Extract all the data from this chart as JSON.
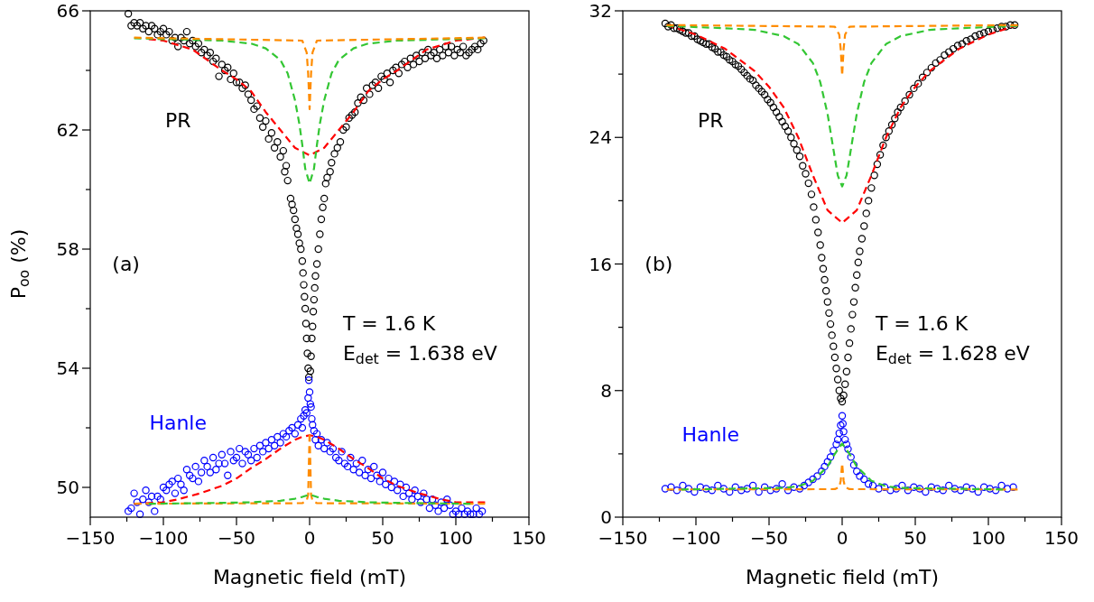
{
  "chart_data": [
    {
      "type": "scatter",
      "xlabel": "Magnetic field (mT)",
      "ylabel": "P$_{oo}$ (%)",
      "line_style": "dashed",
      "xlim": [
        -150,
        150
      ],
      "xticks": [
        {
          "value": -150,
          "label": "−150"
        },
        {
          "value": -125,
          "label": null
        },
        {
          "value": -100,
          "label": "−100"
        },
        {
          "value": -75,
          "label": null
        },
        {
          "value": -50,
          "label": "−50"
        },
        {
          "value": -25,
          "label": null
        },
        0,
        {
          "value": 25,
          "label": null
        },
        50,
        {
          "value": 75,
          "label": null
        },
        100,
        {
          "value": 125,
          "label": null
        },
        150
      ],
      "ylim": [
        49,
        66
      ],
      "yticks": [
        50,
        {
          "value": 52,
          "label": null
        },
        54,
        {
          "value": 56,
          "label": null
        },
        58,
        {
          "value": 60,
          "label": null
        },
        62,
        {
          "value": 64,
          "label": null
        },
        66
      ],
      "annotations": [
        "(a)",
        "T = 1.6 K",
        "E$_{det}$ = 1.638 eV"
      ],
      "series": [
        {
          "name": "PR",
          "marker": "circle",
          "color": "#000000",
          "x": [
            -124,
            -122,
            -120,
            -118,
            -116,
            -114,
            -112,
            -110,
            -108,
            -106,
            -104,
            -102,
            -100,
            -98,
            -96,
            -94,
            -92,
            -90,
            -88,
            -86,
            -84,
            -82,
            -80,
            -78,
            -76,
            -74,
            -72,
            -70,
            -68,
            -66,
            -64,
            -62,
            -60,
            -58,
            -56,
            -54,
            -52,
            -50,
            -48,
            -46,
            -44,
            -42,
            -40,
            -38,
            -36,
            -34,
            -32,
            -30,
            -28,
            -26,
            -24,
            -22,
            -20,
            -18,
            -17,
            -16,
            -15,
            -13,
            -12,
            -11,
            -10,
            -9,
            -8,
            -7,
            -6,
            -5,
            -4.5,
            -4,
            -3.5,
            -3,
            -2.5,
            -2,
            -1.5,
            -1,
            -0.5,
            0.5,
            1,
            1.5,
            2,
            2.5,
            3,
            3.5,
            4,
            5,
            6,
            7,
            8,
            9,
            10,
            11,
            12,
            14,
            15,
            17,
            19,
            21,
            23,
            25,
            27,
            29,
            31,
            33,
            35,
            37,
            39,
            41,
            43,
            45,
            47,
            49,
            51,
            53,
            55,
            57,
            59,
            61,
            63,
            65,
            67,
            69,
            71,
            73,
            75,
            77,
            79,
            81,
            83,
            85,
            87,
            89,
            91,
            93,
            95,
            97,
            99,
            101,
            103,
            105,
            107,
            109,
            111,
            113,
            115,
            117,
            119
          ],
          "values": [
            65.9,
            65.5,
            65.6,
            65.5,
            65.6,
            65.4,
            65.5,
            65.3,
            65.5,
            65.4,
            65.2,
            65.3,
            65.4,
            65.2,
            65.3,
            65.0,
            65.1,
            64.8,
            65.1,
            65.0,
            65.3,
            64.9,
            65.0,
            64.8,
            64.9,
            64.6,
            64.7,
            64.5,
            64.6,
            64.3,
            64.4,
            63.8,
            64.2,
            64.0,
            64.1,
            63.7,
            63.9,
            63.6,
            63.6,
            63.4,
            63.5,
            63.2,
            63.0,
            62.7,
            62.8,
            62.4,
            62.1,
            62.3,
            61.7,
            61.9,
            61.4,
            61.6,
            61.1,
            61.3,
            60.6,
            60.8,
            60.3,
            59.7,
            59.5,
            59.3,
            59.0,
            58.7,
            58.5,
            58.2,
            58.0,
            57.6,
            57.2,
            56.8,
            56.4,
            56.0,
            55.5,
            55.0,
            54.5,
            54.0,
            53.7,
            53.9,
            54.4,
            55.0,
            55.4,
            55.9,
            56.3,
            56.7,
            57.1,
            57.5,
            58.0,
            58.5,
            59.0,
            59.4,
            59.7,
            60.2,
            60.4,
            60.6,
            60.9,
            61.2,
            61.4,
            61.6,
            62.0,
            62.1,
            62.4,
            62.5,
            62.6,
            62.9,
            63.1,
            63.0,
            63.4,
            63.2,
            63.5,
            63.6,
            63.4,
            63.8,
            63.7,
            63.9,
            63.6,
            64.0,
            64.1,
            63.9,
            64.2,
            64.3,
            64.1,
            64.4,
            64.2,
            64.5,
            64.3,
            64.6,
            64.4,
            64.7,
            64.5,
            64.6,
            64.4,
            64.7,
            64.5,
            64.8,
            64.6,
            64.8,
            64.5,
            64.7,
            64.6,
            64.8,
            64.5,
            64.6,
            64.7,
            64.8,
            64.7,
            64.9,
            65.0
          ]
        },
        {
          "name": "Hanle",
          "marker": "circle",
          "color": "#0000ff",
          "x": [
            -124,
            -122,
            -120,
            -118,
            -116,
            -114,
            -112,
            -110,
            -108,
            -106,
            -104,
            -102,
            -100,
            -98,
            -96,
            -94,
            -92,
            -90,
            -88,
            -86,
            -84,
            -82,
            -80,
            -78,
            -76,
            -74,
            -72,
            -70,
            -68,
            -66,
            -64,
            -62,
            -60,
            -58,
            -56,
            -54,
            -52,
            -50,
            -48,
            -46,
            -44,
            -42,
            -40,
            -38,
            -36,
            -34,
            -32,
            -30,
            -28,
            -26,
            -24,
            -22,
            -20,
            -18,
            -16,
            -14,
            -12,
            -10,
            -8,
            -6,
            -5,
            -4,
            -3,
            -2,
            -1,
            -0.5,
            0,
            0.5,
            1,
            1.5,
            2,
            3,
            4,
            5,
            6,
            8,
            10,
            12,
            14,
            16,
            18,
            20,
            22,
            24,
            26,
            28,
            30,
            32,
            34,
            36,
            38,
            40,
            42,
            44,
            46,
            48,
            50,
            52,
            54,
            56,
            58,
            60,
            62,
            64,
            66,
            68,
            70,
            72,
            74,
            76,
            78,
            80,
            82,
            84,
            86,
            88,
            90,
            92,
            94,
            96,
            98,
            100,
            102,
            104,
            106,
            108,
            110,
            112,
            114,
            116,
            118
          ],
          "values": [
            49.2,
            49.3,
            49.8,
            49.5,
            49.1,
            49.6,
            49.9,
            49.5,
            49.7,
            49.2,
            49.7,
            49.6,
            50.0,
            49.9,
            50.1,
            50.2,
            49.8,
            50.3,
            50.1,
            49.9,
            50.6,
            50.4,
            50.3,
            50.7,
            50.2,
            50.5,
            50.9,
            50.7,
            50.5,
            51.0,
            50.6,
            50.8,
            51.1,
            50.8,
            50.4,
            51.2,
            50.9,
            51.0,
            51.3,
            50.8,
            51.2,
            51.1,
            50.9,
            51.3,
            51.0,
            51.4,
            51.2,
            51.5,
            51.3,
            51.6,
            51.4,
            51.7,
            51.5,
            51.8,
            51.7,
            51.9,
            52.0,
            51.8,
            52.1,
            52.3,
            52.0,
            52.4,
            52.6,
            52.5,
            53.0,
            53.6,
            53.2,
            52.8,
            52.7,
            52.3,
            52.1,
            51.9,
            51.6,
            51.8,
            51.4,
            51.6,
            51.3,
            51.5,
            51.2,
            51.3,
            51.0,
            50.9,
            51.2,
            50.8,
            50.7,
            51.0,
            50.6,
            50.8,
            50.5,
            50.9,
            50.4,
            50.6,
            50.3,
            50.7,
            50.4,
            50.2,
            50.5,
            50.1,
            50.3,
            50.0,
            50.2,
            49.9,
            50.1,
            49.7,
            50.0,
            49.8,
            49.6,
            49.9,
            49.7,
            49.5,
            49.8,
            49.6,
            49.3,
            49.6,
            49.4,
            49.2,
            49.5,
            49.3,
            49.6,
            49.4,
            49.1,
            49.2,
            49.1,
            49.3,
            49.1,
            49.2,
            49.1,
            49.1,
            49.3,
            49.1,
            49.2
          ]
        },
        {
          "type": "line",
          "color": "#ff0000",
          "x": [
            -110,
            -100,
            -80,
            -60,
            -50,
            -40,
            -30,
            -20,
            -10,
            0,
            10,
            20,
            30,
            40,
            50,
            60,
            80,
            100,
            120
          ],
          "values": [
            65.05,
            65.0,
            64.7,
            64.0,
            63.7,
            63.3,
            62.6,
            62.0,
            61.4,
            61.15,
            61.4,
            62.0,
            62.6,
            63.3,
            63.7,
            64.0,
            64.7,
            65.0,
            65.1
          ]
        },
        {
          "type": "line",
          "color": "#33c633",
          "x": [
            -120,
            -60,
            -40,
            -30,
            -20,
            -15,
            -10,
            -7,
            -5,
            -3,
            0,
            3,
            5,
            7,
            10,
            15,
            20,
            30,
            40,
            60,
            120
          ],
          "values": [
            65.08,
            65.0,
            64.9,
            64.74,
            64.35,
            63.9,
            63.0,
            62.2,
            61.5,
            60.7,
            60.2,
            60.7,
            61.5,
            62.2,
            63.0,
            63.9,
            64.35,
            64.74,
            64.9,
            65.0,
            65.08
          ]
        },
        {
          "type": "line",
          "color": "#ff8c00",
          "x": [
            -120,
            -5,
            -2,
            -1,
            0,
            1,
            2,
            5,
            120
          ],
          "values": [
            65.1,
            65.0,
            64.6,
            63.9,
            62.7,
            63.9,
            64.6,
            65.0,
            65.1
          ]
        },
        {
          "type": "line",
          "color": "#ff0000",
          "x": [
            -120,
            -100,
            -90,
            -75,
            -60,
            -50,
            -40,
            -30,
            -20,
            -10,
            -5,
            0,
            5,
            10,
            20,
            30,
            40,
            50,
            60,
            75,
            90,
            100,
            120
          ],
          "values": [
            49.45,
            49.5,
            49.6,
            49.8,
            50.05,
            50.3,
            50.65,
            50.95,
            51.3,
            51.6,
            51.7,
            51.75,
            51.7,
            51.6,
            51.3,
            50.95,
            50.65,
            50.3,
            50.05,
            49.8,
            49.6,
            49.5,
            49.5
          ]
        },
        {
          "type": "line",
          "color": "#ff8c00",
          "x": [
            -120,
            -5,
            -2,
            -1,
            0,
            1,
            2,
            5,
            120
          ],
          "values": [
            49.45,
            49.47,
            49.55,
            49.75,
            51.85,
            49.75,
            49.55,
            49.47,
            49.45
          ]
        },
        {
          "type": "line",
          "color": "#33c633",
          "x": [
            -110,
            -60,
            -40,
            -20,
            -10,
            -5,
            0,
            5,
            10,
            20,
            40,
            60,
            110
          ],
          "values": [
            49.45,
            49.48,
            49.5,
            49.55,
            49.62,
            49.68,
            49.76,
            49.68,
            49.62,
            49.55,
            49.5,
            49.48,
            49.45
          ]
        }
      ]
    },
    {
      "type": "scatter",
      "xlabel": "Magnetic field (mT)",
      "line_style": "dashed",
      "xlim": [
        -150,
        150
      ],
      "xticks": [
        {
          "value": -150,
          "label": "−150"
        },
        {
          "value": -125,
          "label": null
        },
        {
          "value": -100,
          "label": "−100"
        },
        {
          "value": -75,
          "label": null
        },
        {
          "value": -50,
          "label": "−50"
        },
        {
          "value": -25,
          "label": null
        },
        0,
        {
          "value": 25,
          "label": null
        },
        50,
        {
          "value": 75,
          "label": null
        },
        100,
        {
          "value": 125,
          "label": null
        },
        150
      ],
      "ylim": [
        0,
        32
      ],
      "yticks": [
        0,
        {
          "value": 4,
          "label": null
        },
        8,
        {
          "value": 12,
          "label": null
        },
        16,
        {
          "value": 20,
          "label": null
        },
        24,
        {
          "value": 28,
          "label": null
        },
        32
      ],
      "annotations": [
        "(b)",
        "T = 1.6 K",
        "E$_{det}$ = 1.628 eV"
      ],
      "series": [
        {
          "name": "PR",
          "marker": "circle",
          "color": "#000000",
          "x": [
            -121,
            -119,
            -117,
            -115,
            -113,
            -111,
            -109,
            -107,
            -105,
            -103,
            -101,
            -99,
            -97,
            -95,
            -93,
            -91,
            -89,
            -87,
            -85,
            -83,
            -81,
            -79,
            -77,
            -75,
            -73,
            -71,
            -69,
            -67,
            -65,
            -63,
            -61,
            -59,
            -57,
            -55,
            -53,
            -51,
            -49,
            -47,
            -45,
            -43,
            -41,
            -39,
            -37,
            -35,
            -33,
            -31,
            -29,
            -27,
            -25,
            -23,
            -21,
            -19.5,
            -18,
            -16.5,
            -15,
            -14,
            -13,
            -12,
            -11,
            -10,
            -9,
            -8,
            -7,
            -6,
            -5,
            -4,
            -3,
            -2,
            -1,
            0,
            1,
            2,
            3,
            4,
            5,
            6,
            7,
            8,
            9,
            10,
            11,
            12,
            13.5,
            15,
            16.5,
            18,
            20,
            22,
            24,
            26,
            28,
            30,
            32,
            34,
            36,
            38,
            40,
            43,
            46,
            49,
            52,
            55,
            58,
            61,
            64,
            67,
            70,
            73,
            76,
            79,
            82,
            85,
            88,
            91,
            94,
            97,
            100,
            103,
            106,
            109,
            112,
            115,
            118
          ],
          "values": [
            31.2,
            31.0,
            31.1,
            30.9,
            30.9,
            30.8,
            30.7,
            30.6,
            30.6,
            30.4,
            30.4,
            30.2,
            30.1,
            30.0,
            29.9,
            29.9,
            29.7,
            29.6,
            29.4,
            29.4,
            29.2,
            29.1,
            28.9,
            28.8,
            28.6,
            28.5,
            28.3,
            28.1,
            27.9,
            27.7,
            27.6,
            27.3,
            27.1,
            26.9,
            26.7,
            26.4,
            26.2,
            25.9,
            25.6,
            25.3,
            25.0,
            24.7,
            24.4,
            24.0,
            23.6,
            23.2,
            22.8,
            22.2,
            21.7,
            21.1,
            20.4,
            19.6,
            18.8,
            18.0,
            17.2,
            16.4,
            15.7,
            15.0,
            14.3,
            13.6,
            12.9,
            12.2,
            11.5,
            10.8,
            10.1,
            9.4,
            8.7,
            8.0,
            7.5,
            7.3,
            7.7,
            8.4,
            9.2,
            10.1,
            11.0,
            11.9,
            12.8,
            13.6,
            14.5,
            15.3,
            16.1,
            16.8,
            17.6,
            18.4,
            19.2,
            20.0,
            20.8,
            21.6,
            22.3,
            22.9,
            23.5,
            24.0,
            24.4,
            24.8,
            25.2,
            25.6,
            25.9,
            26.3,
            26.7,
            27.1,
            27.4,
            27.8,
            28.1,
            28.4,
            28.7,
            28.9,
            29.2,
            29.4,
            29.6,
            29.8,
            29.9,
            30.1,
            30.2,
            30.4,
            30.5,
            30.6,
            30.7,
            30.8,
            30.9,
            31.0,
            31.0,
            31.1,
            31.1
          ]
        },
        {
          "name": "Hanle",
          "marker": "circle",
          "color": "#0000ff",
          "x": [
            -121,
            -117,
            -113,
            -109,
            -105,
            -101,
            -97,
            -93,
            -89,
            -85,
            -81,
            -77,
            -73,
            -69,
            -65,
            -61,
            -57,
            -53,
            -49,
            -45,
            -41,
            -37,
            -33,
            -29,
            -26,
            -23,
            -20,
            -17,
            -14,
            -12,
            -10,
            -8,
            -6,
            -4,
            -3,
            -2,
            -1,
            0,
            0.5,
            1,
            2,
            3,
            4,
            6,
            8,
            10,
            12,
            15,
            18,
            21,
            25,
            29,
            33,
            37,
            41,
            45,
            49,
            53,
            57,
            61,
            65,
            69,
            73,
            77,
            81,
            85,
            89,
            93,
            97,
            101,
            105,
            109,
            113,
            117
          ],
          "values": [
            1.8,
            1.9,
            1.7,
            2.0,
            1.8,
            1.6,
            1.9,
            1.8,
            1.7,
            2.0,
            1.8,
            1.6,
            1.9,
            1.7,
            1.8,
            2.0,
            1.6,
            1.9,
            1.7,
            1.8,
            2.1,
            1.7,
            1.9,
            1.8,
            2.0,
            2.2,
            2.4,
            2.6,
            2.9,
            3.2,
            3.5,
            3.8,
            4.2,
            4.6,
            4.9,
            5.3,
            5.8,
            6.4,
            5.9,
            5.4,
            4.9,
            4.6,
            4.3,
            3.8,
            3.3,
            2.9,
            2.6,
            2.4,
            2.1,
            2.0,
            1.8,
            1.9,
            1.7,
            1.8,
            2.0,
            1.7,
            1.9,
            1.8,
            1.6,
            1.9,
            1.8,
            1.7,
            2.0,
            1.8,
            1.7,
            1.9,
            1.8,
            1.6,
            1.9,
            1.8,
            1.7,
            2.0,
            1.8,
            1.9
          ]
        },
        {
          "type": "line",
          "color": "#ff0000",
          "x": [
            -120,
            -100,
            -80,
            -60,
            -50,
            -40,
            -30,
            -20,
            -10,
            0,
            10,
            20,
            30,
            40,
            50,
            60,
            80,
            100,
            120
          ],
          "values": [
            31.1,
            30.5,
            29.6,
            28.2,
            27.2,
            25.9,
            24.0,
            21.6,
            19.4,
            18.6,
            19.4,
            21.6,
            24.0,
            25.9,
            27.2,
            28.2,
            29.6,
            30.5,
            31.1
          ]
        },
        {
          "type": "line",
          "color": "#33c633",
          "x": [
            -120,
            -80,
            -60,
            -40,
            -30,
            -20,
            -15,
            -10,
            -5,
            -3,
            0,
            3,
            5,
            10,
            15,
            20,
            30,
            40,
            60,
            80,
            120
          ],
          "values": [
            31.05,
            30.9,
            30.8,
            30.4,
            29.9,
            28.7,
            27.5,
            25.5,
            22.7,
            21.6,
            20.9,
            21.6,
            22.7,
            25.5,
            27.5,
            28.7,
            29.9,
            30.4,
            30.8,
            30.9,
            31.05
          ]
        },
        {
          "type": "line",
          "color": "#ff8c00",
          "x": [
            -120,
            -5,
            -2,
            -1,
            0,
            1,
            2,
            5,
            120
          ],
          "values": [
            31.1,
            31.0,
            30.5,
            29.6,
            27.9,
            29.6,
            30.5,
            31.0,
            31.1
          ]
        },
        {
          "type": "line",
          "color": "#ff8c00",
          "x": [
            -120,
            -5,
            -2,
            -1,
            0,
            1,
            2,
            5,
            120
          ],
          "values": [
            1.75,
            1.77,
            1.9,
            2.3,
            3.4,
            2.3,
            1.9,
            1.77,
            1.75
          ]
        },
        {
          "type": "line",
          "color": "#33c633",
          "x": [
            -110,
            -40,
            -30,
            -20,
            -10,
            -5,
            0,
            5,
            10,
            20,
            30,
            40,
            110
          ],
          "values": [
            1.75,
            1.85,
            1.95,
            2.3,
            3.2,
            4.0,
            4.65,
            4.0,
            3.2,
            2.3,
            1.95,
            1.85,
            1.75
          ]
        }
      ]
    }
  ]
}
